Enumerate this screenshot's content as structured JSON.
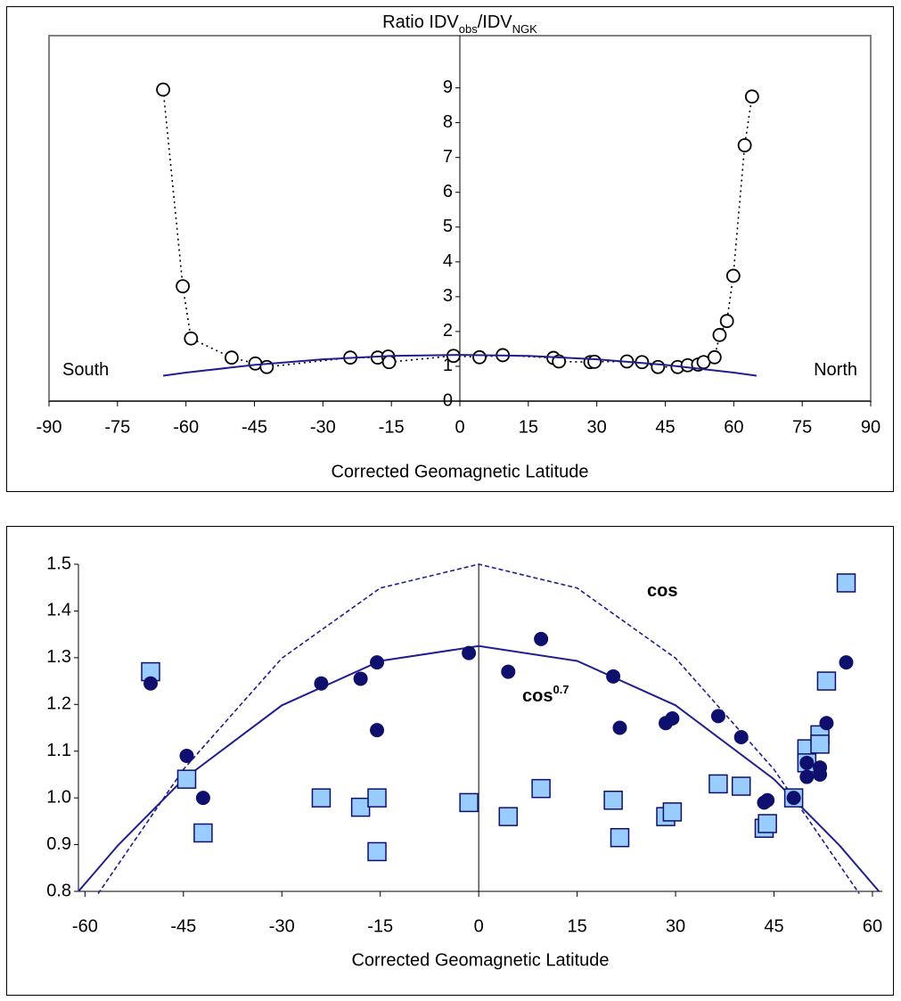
{
  "chart_data": [
    {
      "type": "scatter",
      "title_parts": [
        "Ratio IDV",
        "obs",
        "/IDV",
        "NGK"
      ],
      "x_label": "Corrected Geomagnetic Latitude",
      "xlim": [
        -90,
        90
      ],
      "xticks": [
        -90,
        -75,
        -60,
        -45,
        -30,
        -15,
        0,
        15,
        30,
        45,
        60,
        75,
        90
      ],
      "ylim": [
        0,
        10.5
      ],
      "yticks": [
        0,
        1,
        2,
        3,
        4,
        5,
        6,
        7,
        8,
        9
      ],
      "annotations": [
        {
          "text": "South"
        },
        {
          "text": "North"
        }
      ],
      "series": [
        {
          "color": "#000000",
          "marker": "circle-open",
          "line": "dotted",
          "x": [
            -65,
            -60.7,
            -58.9,
            -50,
            -44.8,
            -42.3,
            -24,
            -18,
            -15.7,
            -15.5,
            -1.4,
            4.3,
            9.4,
            20.5,
            21.7,
            28.6,
            29.5,
            36.6,
            39.9,
            43.4,
            47.7,
            49.9,
            52.2,
            53.4,
            55.8,
            56.9,
            58.5,
            59.9,
            62.4,
            64
          ],
          "values": [
            8.95,
            3.3,
            1.8,
            1.25,
            1.08,
            0.98,
            1.25,
            1.25,
            1.28,
            1.12,
            1.3,
            1.26,
            1.32,
            1.24,
            1.14,
            1.12,
            1.13,
            1.14,
            1.12,
            0.98,
            0.98,
            1.03,
            1.05,
            1.12,
            1.26,
            1.9,
            2.3,
            3.6,
            7.35,
            8.75
          ]
        },
        {
          "color": "#1f1f8f",
          "line": "solid",
          "x": [
            -65,
            -60,
            -45,
            -30,
            -15,
            0,
            15,
            30,
            45,
            60,
            65
          ],
          "values": [
            0.73,
            0.82,
            1.04,
            1.2,
            1.3,
            1.33,
            1.3,
            1.2,
            1.04,
            0.82,
            0.73
          ]
        }
      ]
    },
    {
      "type": "scatter",
      "x_label": "Corrected Geomagnetic Latitude",
      "xlim": [
        -61,
        61.5
      ],
      "xticks": [
        -60,
        -45,
        -30,
        -15,
        0,
        15,
        30,
        45,
        60
      ],
      "ylim": [
        0.8,
        1.5
      ],
      "yticks": [
        0.8,
        0.9,
        {
          "value": 1,
          "label": "1.0"
        },
        1.1,
        1.2,
        1.3,
        1.4,
        1.5
      ],
      "annotations": [
        {
          "text": "cos"
        },
        {
          "text": "cos",
          "sup": "0.7"
        }
      ],
      "series": [
        {
          "color": "#1f1f8f",
          "line": "dashed",
          "x": [
            -58,
            -45,
            -30,
            -15,
            0,
            15,
            30,
            45,
            58
          ],
          "values": [
            0.795,
            1.061,
            1.299,
            1.449,
            1.5,
            1.449,
            1.299,
            1.061,
            0.795
          ]
        },
        {
          "color": "#1f1f8f",
          "line": "solid",
          "x": [
            -61,
            -55,
            -45,
            -30,
            -15,
            0,
            15,
            30,
            45,
            55,
            61
          ],
          "values": [
            0.8,
            0.898,
            1.04,
            1.198,
            1.293,
            1.325,
            1.293,
            1.198,
            1.04,
            0.898,
            0.8
          ]
        },
        {
          "color": "#99ccff",
          "marker": "square",
          "x": [
            -50,
            -44.5,
            -42,
            -24,
            -18,
            -15.5,
            -15.5,
            -1.5,
            4.5,
            9.5,
            20.5,
            21.5,
            28.5,
            29.5,
            36.5,
            40,
            43.5,
            44,
            48,
            50,
            50,
            52,
            52,
            53,
            56
          ],
          "values": [
            1.27,
            1.04,
            0.925,
            1.0,
            0.98,
            1.0,
            0.885,
            0.99,
            0.96,
            1.02,
            0.995,
            0.915,
            0.96,
            0.97,
            1.03,
            1.025,
            0.935,
            0.945,
            1.0,
            1.105,
            1.075,
            1.135,
            1.115,
            1.25,
            1.46
          ]
        },
        {
          "color": "#0f0f6e",
          "marker": "circle",
          "x": [
            -50,
            -44.5,
            -42,
            -24,
            -18,
            -15.5,
            -15.5,
            -1.5,
            4.5,
            9.5,
            20.5,
            21.5,
            28.5,
            29.5,
            36.5,
            40,
            43.5,
            44,
            48,
            50,
            50,
            52,
            52,
            53,
            56
          ],
          "values": [
            1.245,
            1.09,
            1.0,
            1.245,
            1.255,
            1.29,
            1.145,
            1.31,
            1.27,
            1.34,
            1.26,
            1.15,
            1.16,
            1.17,
            1.175,
            1.13,
            0.99,
            0.995,
            1.0,
            1.075,
            1.045,
            1.065,
            1.05,
            1.16,
            1.29
          ]
        }
      ]
    }
  ]
}
